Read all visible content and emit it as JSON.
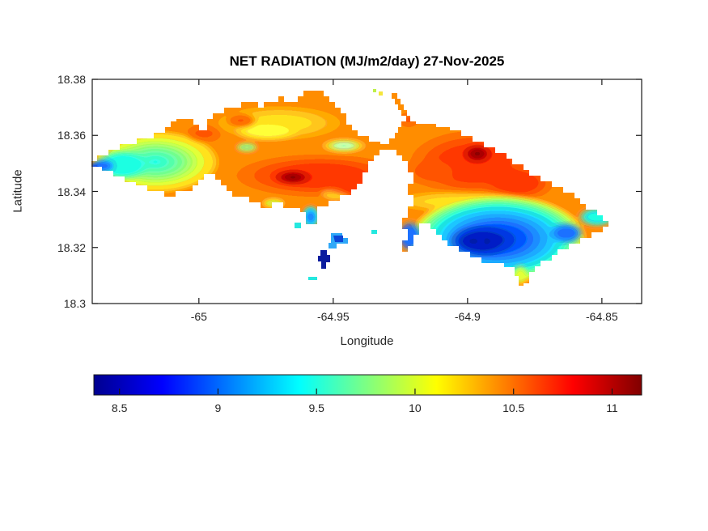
{
  "figure": {
    "title": "NET RADIATION (MJ/m2/day) 27-Nov-2025",
    "xlabel": "Longitude",
    "ylabel": "Latitude"
  },
  "chart_data": {
    "type": "filled_contour_map",
    "title": "NET RADIATION (MJ/m2/day) 27-Nov-2025",
    "xlabel": "Longitude",
    "ylabel": "Latitude",
    "xlim": [
      -65.0397,
      -64.8352
    ],
    "ylim": [
      18.3,
      18.38
    ],
    "x_ticks": [
      -65,
      -64.95,
      -64.9,
      -64.85
    ],
    "y_ticks": [
      18.3,
      18.32,
      18.34,
      18.36,
      18.38
    ],
    "grid": false,
    "colormap": "jet",
    "colorbar": {
      "orientation": "horizontal",
      "min": 8.37,
      "max": 11.15,
      "ticks": [
        8.5,
        9,
        9.5,
        10,
        10.5,
        11
      ],
      "units": "MJ/m2/day"
    },
    "region": "island contour grid (St. Thomas-like shape) with small southern islets",
    "features": [
      {
        "name": "west-tip-minimum",
        "lon": -65.035,
        "lat": 18.351,
        "value": 9.0
      },
      {
        "name": "west-lobe-cyan-green",
        "lon": -65.027,
        "lat": 18.35,
        "value": 9.5
      },
      {
        "name": "northwest-yellow-band",
        "lon": -64.999,
        "lat": 18.357,
        "value": 10.2
      },
      {
        "name": "central-maximum-dark-red",
        "lon": -64.966,
        "lat": 18.345,
        "value": 11.1
      },
      {
        "name": "north-central-mint-streak",
        "lon": -64.947,
        "lat": 18.356,
        "value": 9.9
      },
      {
        "name": "northeast-maximum-dark-red",
        "lon": -64.897,
        "lat": 18.353,
        "value": 11.1
      },
      {
        "name": "east-yellow-transition-band",
        "lon": -64.905,
        "lat": 18.336,
        "value": 10.0
      },
      {
        "name": "southeast-minimum-navy",
        "lon": -64.893,
        "lat": 18.323,
        "value": 8.4
      },
      {
        "name": "east-tip-cyan",
        "lon": -64.852,
        "lat": 18.33,
        "value": 9.5
      },
      {
        "name": "south-islets-blue",
        "lon": -64.952,
        "lat": 18.315,
        "value": 8.6
      }
    ]
  }
}
